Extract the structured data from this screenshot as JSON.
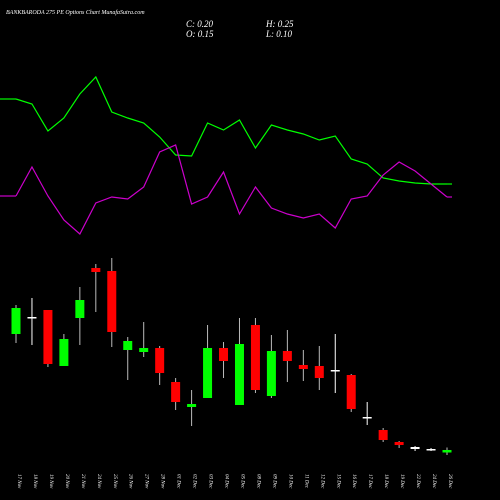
{
  "chart_data": {
    "type": "candlestick",
    "title": "BANKBARODA 275 PE Options Chart MunafaSutra.com",
    "ohlc_labels": {
      "close": "C: 0.20",
      "high": "H: 0.25",
      "open": "O: 0.15",
      "low": "L: 0.10"
    },
    "categories": [
      "17 Nov",
      "18 Nov",
      "19 Nov",
      "20 Nov",
      "21 Nov",
      "24 Nov",
      "25 Nov",
      "26 Nov",
      "27 Nov",
      "28 Nov",
      "01 Dec",
      "02 Dec",
      "03 Dec",
      "04 Dec",
      "05 Dec",
      "08 Dec",
      "09 Dec",
      "10 Dec",
      "11 Dec",
      "12 Dec",
      "15 Dec",
      "16 Dec",
      "17 Dec",
      "18 Dec",
      "19 Dec",
      "22 Dec",
      "24 Dec",
      "26 Dec"
    ],
    "open": [
      2.52,
      2.86,
      3.0,
      1.88,
      2.84,
      3.84,
      3.78,
      2.2,
      2.16,
      2.24,
      1.56,
      1.06,
      1.24,
      2.24,
      1.1,
      2.7,
      1.28,
      2.18,
      1.9,
      1.88,
      1.78,
      1.7,
      0.86,
      0.6,
      0.36,
      0.26,
      0.22,
      0.15
    ],
    "high": [
      3.1,
      3.24,
      3.0,
      2.52,
      3.46,
      3.92,
      4.04,
      2.46,
      2.76,
      2.28,
      1.64,
      1.4,
      2.7,
      2.36,
      2.84,
      2.84,
      2.5,
      2.6,
      2.2,
      2.28,
      2.52,
      1.72,
      1.16,
      0.64,
      0.38,
      0.28,
      0.24,
      0.25
    ],
    "low": [
      2.34,
      2.3,
      1.86,
      1.88,
      2.3,
      2.96,
      2.26,
      1.6,
      2.06,
      1.5,
      1.0,
      0.68,
      1.24,
      1.64,
      1.1,
      1.34,
      1.24,
      1.56,
      1.58,
      1.4,
      1.34,
      0.96,
      0.7,
      0.36,
      0.24,
      0.18,
      0.18,
      0.1
    ],
    "close": [
      3.04,
      2.84,
      1.92,
      2.42,
      3.2,
      3.76,
      2.56,
      2.38,
      2.24,
      1.74,
      1.16,
      1.12,
      2.24,
      1.98,
      2.32,
      1.4,
      2.18,
      1.98,
      1.82,
      1.64,
      1.8,
      1.02,
      0.84,
      0.4,
      0.3,
      0.22,
      0.2,
      0.2
    ],
    "up_color": "#00ff00",
    "down_color": "#ff0000",
    "doji_color": "#ffffff",
    "ylim": [
      0,
      4.2
    ],
    "y2lim": [
      0,
      250
    ],
    "series": [
      {
        "color": "#00ff00",
        "axis": "y2",
        "values": [
          151,
          146,
          119,
          132,
          156,
          173,
          138,
          132,
          127,
          113,
          95,
          94,
          127,
          120,
          130,
          102,
          125,
          120,
          116,
          110,
          114,
          91,
          86,
          72,
          69,
          67,
          66,
          66
        ]
      },
      {
        "color": "#cc00cc",
        "axis": "y2",
        "values": [
          54,
          83,
          54,
          30,
          16,
          47,
          53,
          51,
          63,
          98,
          105,
          46,
          53,
          78,
          36,
          63,
          42,
          36,
          32,
          36,
          22,
          51,
          54,
          75,
          88,
          79,
          66,
          53
        ]
      }
    ]
  }
}
